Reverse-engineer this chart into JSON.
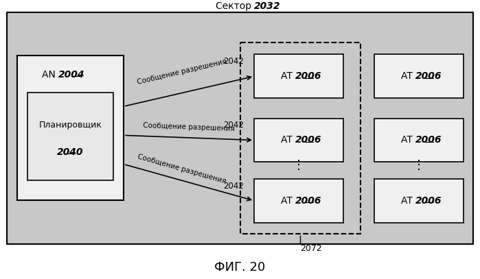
{
  "title": "ФИГ. 20",
  "sector_label": "Сектор ",
  "sector_num": "2032",
  "an_label": "AN ",
  "an_num": "2004",
  "planner_label": "Планировщик",
  "planner_num": "2040",
  "at_label": "AT ",
  "at_num": "2006",
  "msg_label": "Сообщение разрешения",
  "arrow_num": "2042",
  "sector_box_num": "2072",
  "outer_bg": "#c8c8c8",
  "box_fill": "#f0f0f0",
  "inner_box_fill": "#e8e8e8",
  "fig_bg": "#ffffff",
  "text_color": "#000000"
}
